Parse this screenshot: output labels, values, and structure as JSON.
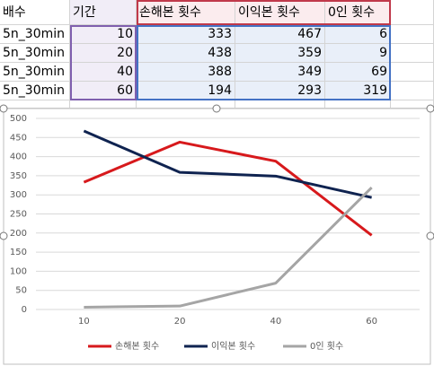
{
  "table": {
    "header": [
      "배수",
      "기간",
      "손해본 횟수",
      "이익본 횟수",
      "0인 횟수"
    ],
    "rows": [
      [
        "5n_30min",
        10,
        333,
        467,
        6
      ],
      [
        "5n_30min",
        20,
        438,
        359,
        9
      ],
      [
        "5n_30min",
        40,
        388,
        349,
        69
      ],
      [
        "5n_30min",
        60,
        194,
        293,
        319
      ]
    ]
  },
  "chart_data": {
    "type": "line",
    "categories": [
      10,
      20,
      40,
      60
    ],
    "series": [
      {
        "name": "손해본 횟수",
        "color": "#d7191c",
        "values": [
          333,
          438,
          388,
          194
        ]
      },
      {
        "name": "이익본 횟수",
        "color": "#0f2350",
        "values": [
          467,
          359,
          349,
          293
        ]
      },
      {
        "name": "0인 횟수",
        "color": "#a5a5a5",
        "values": [
          6,
          9,
          69,
          319
        ]
      }
    ],
    "ylim": [
      0,
      500
    ],
    "yticks": [
      0,
      50,
      100,
      150,
      200,
      250,
      300,
      350,
      400,
      450,
      500
    ],
    "grid": true,
    "legend": "bottom"
  }
}
